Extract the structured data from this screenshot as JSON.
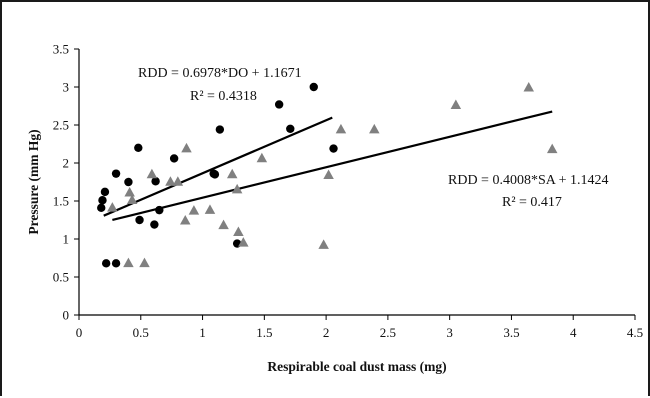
{
  "chart_data": {
    "type": "scatter",
    "xlabel": "Respirable coal dust mass (mg)",
    "ylabel": "Pressure (mm Hg)",
    "xlim": [
      0,
      4.5
    ],
    "ylim": [
      0,
      3.5
    ],
    "x_ticks": [
      "0",
      "0.5",
      "1",
      "1.5",
      "2",
      "2.5",
      "3",
      "3.5",
      "4",
      "4.5"
    ],
    "y_ticks": [
      "0",
      "0.5",
      "1",
      "1.5",
      "2",
      "2.5",
      "3",
      "3.5"
    ],
    "grid": false,
    "series": [
      {
        "marker": "circle",
        "color": "#000000",
        "points": [
          [
            0.18,
            1.41
          ],
          [
            0.19,
            1.51
          ],
          [
            0.21,
            1.62
          ],
          [
            0.22,
            0.68
          ],
          [
            0.3,
            0.68
          ],
          [
            0.3,
            1.86
          ],
          [
            0.4,
            1.75
          ],
          [
            0.48,
            2.2
          ],
          [
            0.49,
            1.25
          ],
          [
            0.61,
            1.19
          ],
          [
            0.62,
            1.76
          ],
          [
            0.65,
            1.38
          ],
          [
            0.77,
            2.06
          ],
          [
            1.09,
            1.86
          ],
          [
            1.1,
            1.85
          ],
          [
            1.14,
            2.44
          ],
          [
            1.28,
            0.94
          ],
          [
            1.62,
            2.77
          ],
          [
            1.71,
            2.45
          ],
          [
            1.9,
            3.0
          ],
          [
            2.06,
            2.19
          ]
        ]
      },
      {
        "marker": "triangle",
        "color": "#808080",
        "points": [
          [
            0.27,
            1.41
          ],
          [
            0.4,
            0.68
          ],
          [
            0.41,
            1.61
          ],
          [
            0.43,
            1.51
          ],
          [
            0.53,
            0.68
          ],
          [
            0.59,
            1.85
          ],
          [
            0.74,
            1.75
          ],
          [
            0.8,
            1.75
          ],
          [
            0.86,
            1.24
          ],
          [
            0.87,
            2.19
          ],
          [
            0.93,
            1.37
          ],
          [
            1.06,
            1.38
          ],
          [
            1.17,
            1.18
          ],
          [
            1.24,
            1.85
          ],
          [
            1.28,
            1.65
          ],
          [
            1.29,
            1.09
          ],
          [
            1.33,
            0.95
          ],
          [
            1.48,
            2.06
          ],
          [
            1.98,
            0.92
          ],
          [
            2.02,
            1.84
          ],
          [
            2.12,
            2.44
          ],
          [
            2.39,
            2.44
          ],
          [
            3.05,
            2.76
          ],
          [
            3.64,
            2.99
          ],
          [
            3.83,
            2.18
          ]
        ]
      }
    ],
    "trendlines": [
      {
        "label": "RDD = 0.6978*DO + 1.1671",
        "r2": "R² = 0.4318",
        "slope": 0.6978,
        "intercept": 1.1671,
        "x_range": [
          0.2,
          2.05
        ]
      },
      {
        "label": "RDD = 0.4008*SA + 1.1424",
        "r2": "R² = 0.417",
        "slope": 0.4008,
        "intercept": 1.1424,
        "x_range": [
          0.27,
          3.83
        ]
      }
    ]
  }
}
